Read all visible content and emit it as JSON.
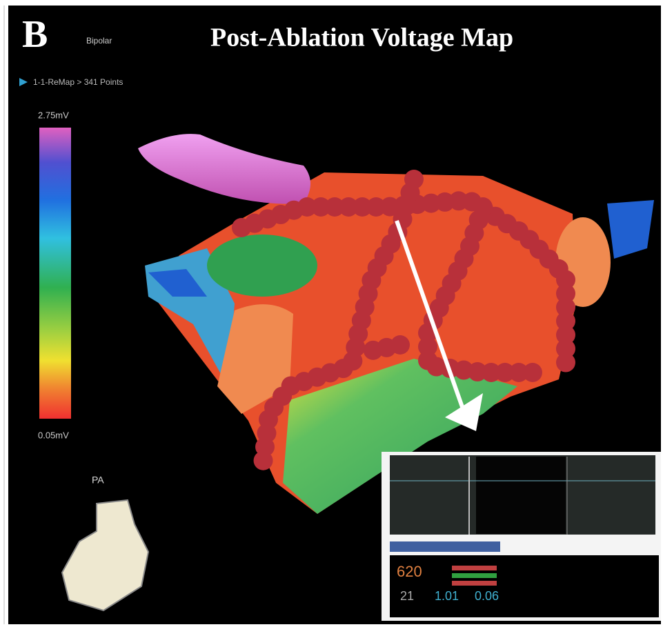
{
  "header": {
    "panel_label": "B",
    "mode": "Bipolar",
    "title": "Post-Ablation Voltage Map"
  },
  "map": {
    "label": "1-1-ReMap > 341 Points"
  },
  "colorbar": {
    "max_label": "2.75mV",
    "min_label": "0.05mV"
  },
  "orientation": {
    "label": "PA"
  },
  "inset": {
    "readouts": [
      "620",
      "21",
      "1.01",
      "0.06"
    ]
  }
}
